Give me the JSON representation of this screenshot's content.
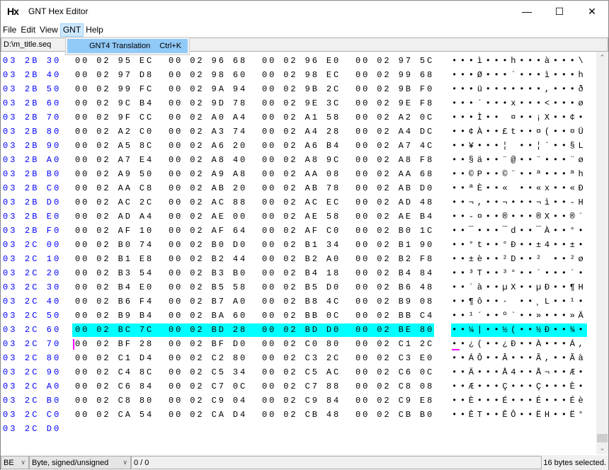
{
  "window": {
    "icon": "Hx",
    "title": "GNT Hex Editor",
    "minimize": "—",
    "maximize": "☐",
    "close": "✕"
  },
  "menu": [
    "File",
    "Edit",
    "View",
    "GNT",
    "Help"
  ],
  "dropdown": {
    "item": "GNT4 Translation",
    "shortcut": "Ctrl+K"
  },
  "path": "D:\\m_title.seq",
  "rows": [
    {
      "offset": "03 2B 30",
      "hex": [
        "00 02 95 EC",
        "00 02 96 68",
        "00 02 96 E0",
        "00 02 97 5C"
      ],
      "text": "•••ì•••h•••à•••\\"
    },
    {
      "offset": "03 2B 40",
      "hex": [
        "00 02 97 D8",
        "00 02 98 60",
        "00 02 98 EC",
        "00 02 99 68"
      ],
      "text": "•••Ø•••`•••ì•••h"
    },
    {
      "offset": "03 2B 50",
      "hex": [
        "00 02 99 FC",
        "00 02 9A 94",
        "00 02 9B 2C",
        "00 02 9B F0"
      ],
      "text": "•••ü•••••••,•••ð"
    },
    {
      "offset": "03 2B 60",
      "hex": [
        "00 02 9C B4",
        "00 02 9D 78",
        "00 02 9E 3C",
        "00 02 9E F8"
      ],
      "text": "•••´•••x•••<•••ø"
    },
    {
      "offset": "03 2B 70",
      "hex": [
        "00 02 9F CC",
        "00 02 A0 A4",
        "00 02 A1 58",
        "00 02 A2 0C"
      ],
      "text": "•••Ì•• ¤••¡X••¢•"
    },
    {
      "offset": "03 2B 80",
      "hex": [
        "00 02 A2 C0",
        "00 02 A3 74",
        "00 02 A4 28",
        "00 02 A4 DC"
      ],
      "text": "••¢À••£t••¤(••¤Ü"
    },
    {
      "offset": "03 2B 90",
      "hex": [
        "00 02 A5 8C",
        "00 02 A6 20",
        "00 02 A6 B4",
        "00 02 A7 4C"
      ],
      "text": "••¥•••¦ ••¦´••§L"
    },
    {
      "offset": "03 2B A0",
      "hex": [
        "00 02 A7 E4",
        "00 02 A8 40",
        "00 02 A8 9C",
        "00 02 A8 F8"
      ],
      "text": "••§ä••¨@••¨•••¨ø"
    },
    {
      "offset": "03 2B B0",
      "hex": [
        "00 02 A9 50",
        "00 02 A9 A8",
        "00 02 AA 08",
        "00 02 AA 68"
      ],
      "text": "••©P••©¨••ª•••ªh"
    },
    {
      "offset": "03 2B C0",
      "hex": [
        "00 02 AA C8",
        "00 02 AB 20",
        "00 02 AB 78",
        "00 02 AB D0"
      ],
      "text": "••ªÈ••« ••«x••«Ð"
    },
    {
      "offset": "03 2B D0",
      "hex": [
        "00 02 AC 2C",
        "00 02 AC 88",
        "00 02 AC EC",
        "00 02 AD 48"
      ],
      "text": "••¬,••¬•••¬ì••-H"
    },
    {
      "offset": "03 2B E0",
      "hex": [
        "00 02 AD A4",
        "00 02 AE 00",
        "00 02 AE 58",
        "00 02 AE B4"
      ],
      "text": "••-¤••®•••®X••®´"
    },
    {
      "offset": "03 2B F0",
      "hex": [
        "00 02 AF 10",
        "00 02 AF 64",
        "00 02 AF C0",
        "00 02 B0 1C"
      ],
      "text": "••¯•••¯d••¯À••°•"
    },
    {
      "offset": "03 2C 00",
      "hex": [
        "00 02 B0 74",
        "00 02 B0 D0",
        "00 02 B1 34",
        "00 02 B1 90"
      ],
      "text": "••°t••°Ð••±4••±•"
    },
    {
      "offset": "03 2C 10",
      "hex": [
        "00 02 B1 E8",
        "00 02 B2 44",
        "00 02 B2 A0",
        "00 02 B2 F8"
      ],
      "text": "••±è••²D••² ••²ø"
    },
    {
      "offset": "03 2C 20",
      "hex": [
        "00 02 B3 54",
        "00 02 B3 B0",
        "00 02 B4 18",
        "00 02 B4 84"
      ],
      "text": "••³T••³°••´•••´•"
    },
    {
      "offset": "03 2C 30",
      "hex": [
        "00 02 B4 E0",
        "00 02 B5 58",
        "00 02 B5 D0",
        "00 02 B6 48"
      ],
      "text": "••´à••µX••µÐ••¶H"
    },
    {
      "offset": "03 2C 40",
      "hex": [
        "00 02 B6 F4",
        "00 02 B7 A0",
        "00 02 B8 4C",
        "00 02 B9 08"
      ],
      "text": "••¶ô••· ••¸L••¹•"
    },
    {
      "offset": "03 2C 50",
      "hex": [
        "00 02 B9 B4",
        "00 02 BA 60",
        "00 02 BB 0C",
        "00 02 BB C4"
      ],
      "text": "••¹´••º`••»•••»Ä"
    },
    {
      "offset": "03 2C 60",
      "hex": [
        "00 02 BC 7C",
        "00 02 BD 28",
        "00 02 BD D0",
        "00 02 BE 80"
      ],
      "text": "••¼|••½(••½Ð••¾•",
      "selected": true
    },
    {
      "offset": "03 2C 70",
      "hex": [
        "00 02 BF 28",
        "00 02 BF D0",
        "00 02 C0 80",
        "00 02 C1 2C"
      ],
      "text": "••¿(••¿Ð••À•••Á,",
      "cursor": true
    },
    {
      "offset": "03 2C 80",
      "hex": [
        "00 02 C1 D4",
        "00 02 C2 80",
        "00 02 C3 2C",
        "00 02 C3 E0"
      ],
      "text": "••ÁÔ••Â•••Ã,••Ãà"
    },
    {
      "offset": "03 2C 90",
      "hex": [
        "00 02 C4 8C",
        "00 02 C5 34",
        "00 02 C5 AC",
        "00 02 C6 0C"
      ],
      "text": "••Ä•••Å4••Å¬••Æ•"
    },
    {
      "offset": "03 2C A0",
      "hex": [
        "00 02 C6 84",
        "00 02 C7 0C",
        "00 02 C7 88",
        "00 02 C8 08"
      ],
      "text": "••Æ•••Ç•••Ç•••È•"
    },
    {
      "offset": "03 2C B0",
      "hex": [
        "00 02 C8 80",
        "00 02 C9 04",
        "00 02 C9 84",
        "00 02 C9 E8"
      ],
      "text": "••È•••É•••É•••Éè"
    },
    {
      "offset": "03 2C C0",
      "hex": [
        "00 02 CA 54",
        "00 02 CA D4",
        "00 02 CB 48",
        "00 02 CB B0"
      ],
      "text": "••ÊT••ÊÔ••ËH••Ë°"
    },
    {
      "offset": "03 2C D0",
      "hex": [],
      "text": ""
    }
  ],
  "colors": {
    "offset": "#0000ff",
    "selection": "#00ffff",
    "cursor": "#ff00ff",
    "menu_highlight": "#91c9f7"
  },
  "status": {
    "endian": "BE",
    "type": "Byte, signed/unsigned",
    "value": "0 / 0",
    "selection": "16 bytes selected."
  },
  "icons": {
    "scroll_up": "chevron-up-icon",
    "scroll_down": "chevron-down-icon",
    "dropdown": "chevron-down-icon"
  }
}
